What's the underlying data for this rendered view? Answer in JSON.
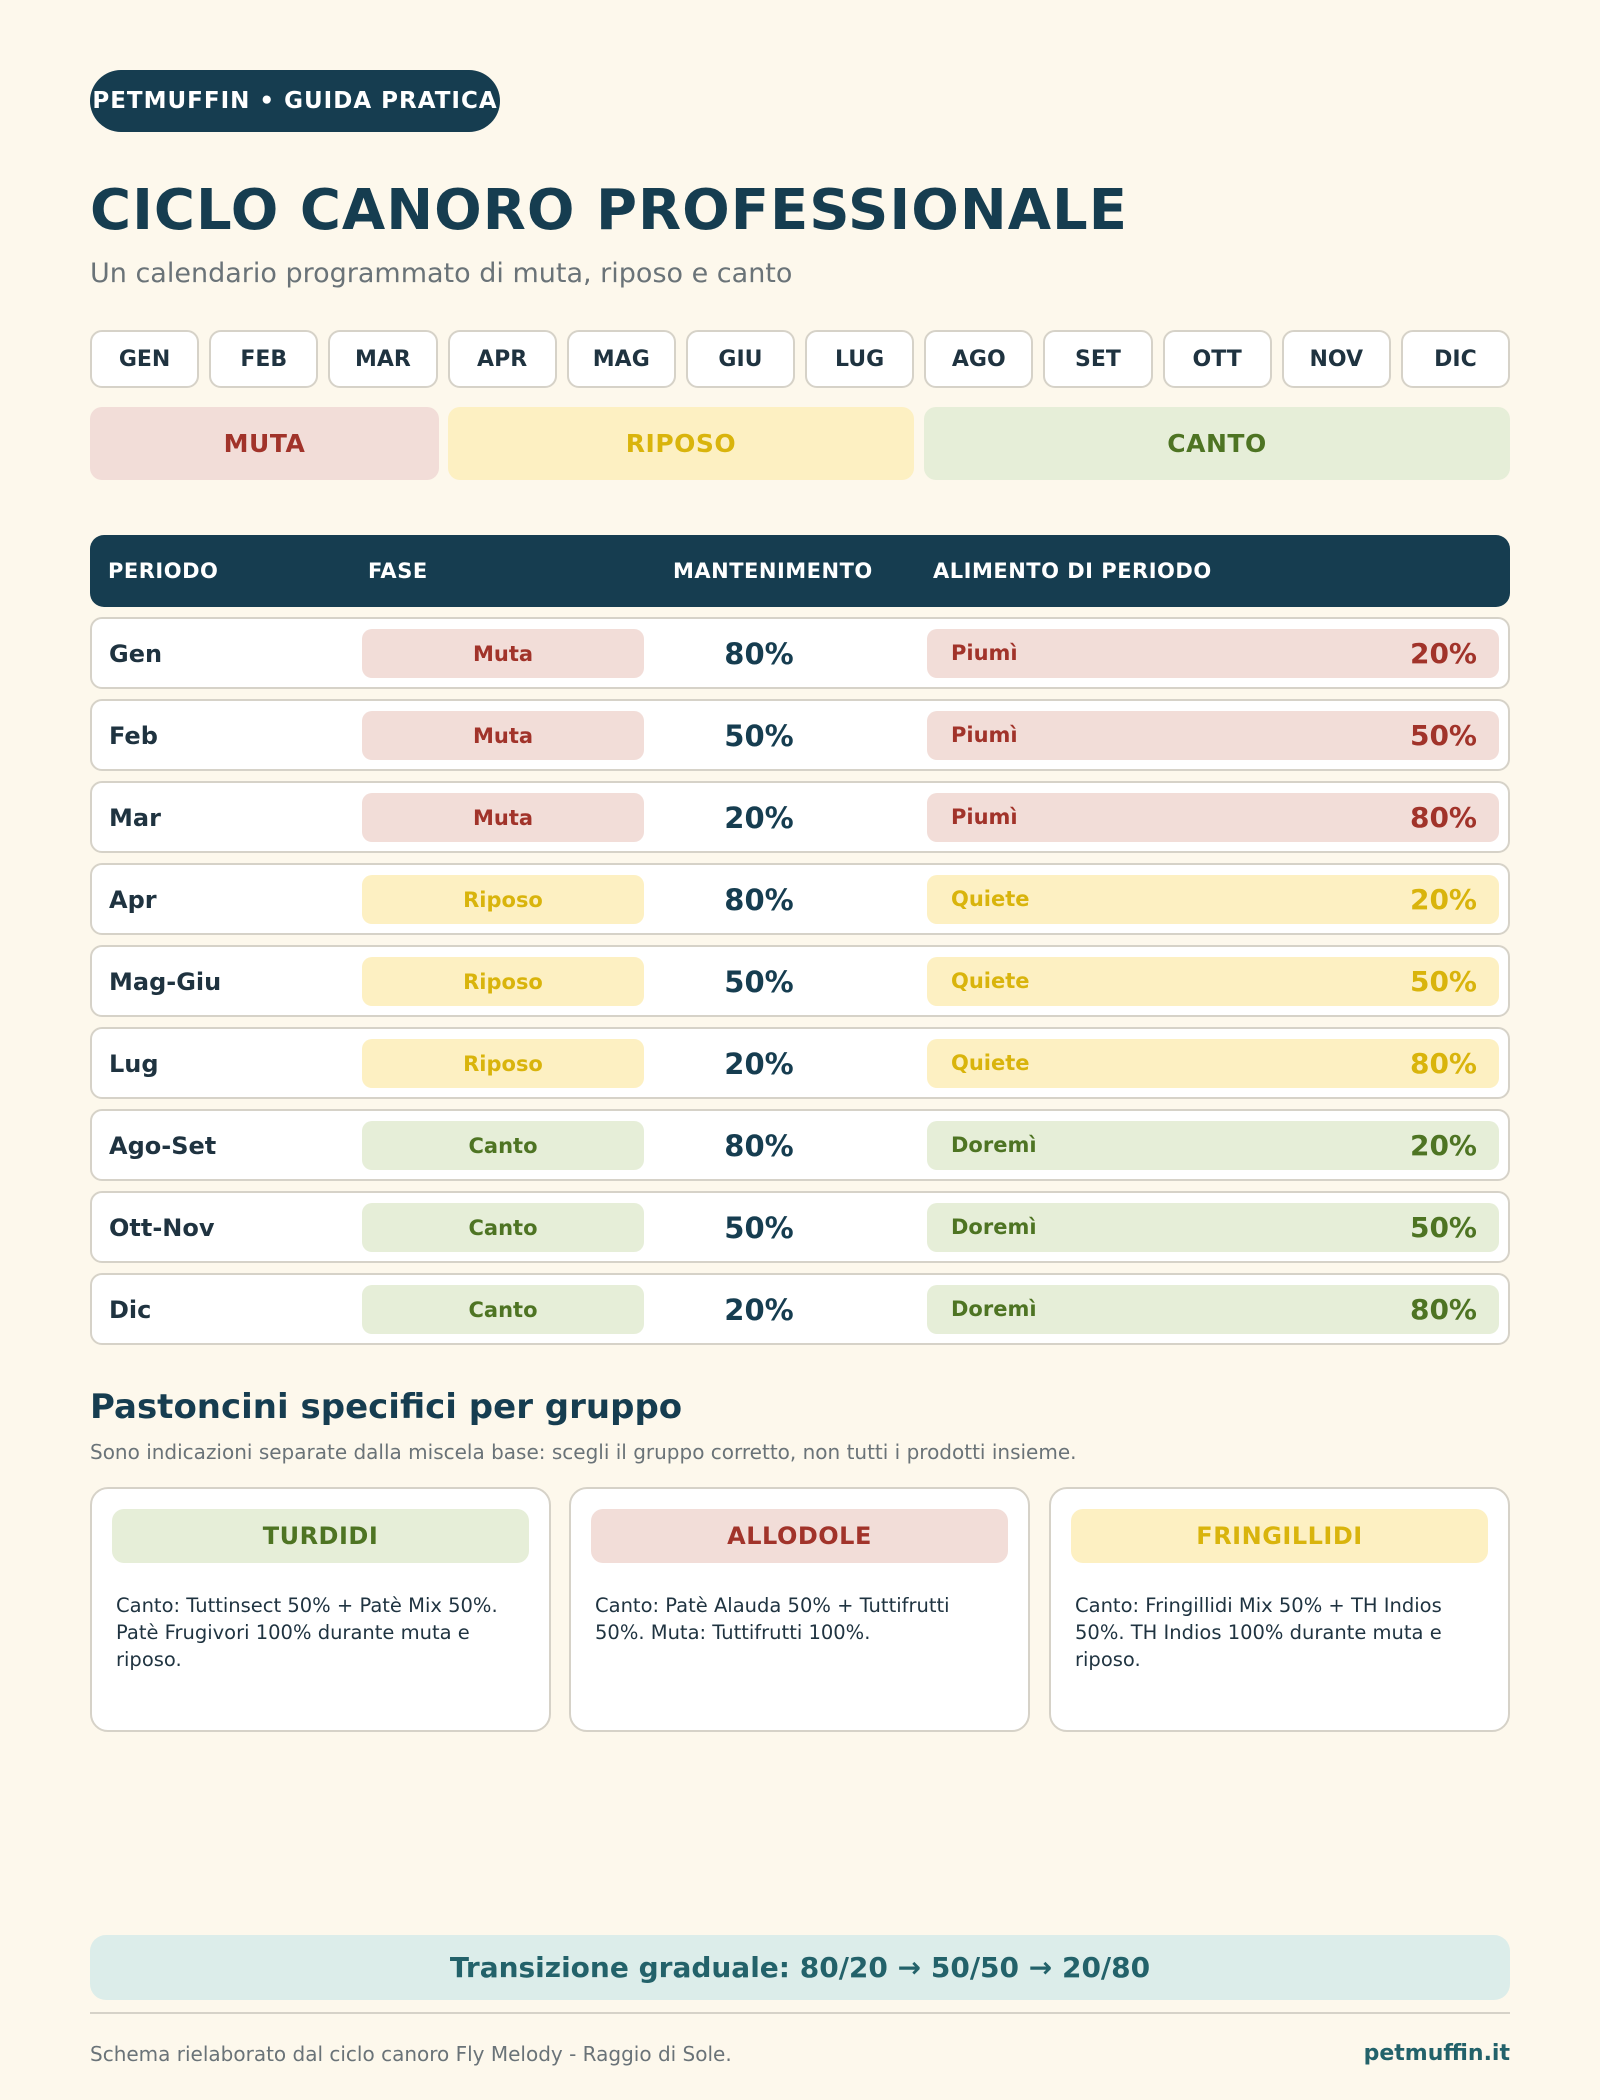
{
  "brand_pill": "PETMUFFIN  •  GUIDA PRATICA",
  "title": "CICLO CANORO PROFESSIONALE",
  "subtitle": "Un calendario programmato di muta, riposo e canto",
  "months": [
    "GEN",
    "FEB",
    "MAR",
    "APR",
    "MAG",
    "GIU",
    "LUG",
    "AGO",
    "SET",
    "OTT",
    "NOV",
    "DIC"
  ],
  "phases": {
    "muta": "MUTA",
    "riposo": "RIPOSO",
    "canto": "CANTO"
  },
  "colors": {
    "navy": "#163d50",
    "muta_bg": "#f2ddd8",
    "muta_text": "#a1332a",
    "riposo_bg": "#fdf0c2",
    "riposo_text": "#d9b40c",
    "canto_bg": "#e6eed8",
    "canto_text": "#4e7423",
    "background": "#fdf8ec"
  },
  "table": {
    "headers": {
      "periodo": "PERIODO",
      "fase": "FASE",
      "mantenimento": "MANTENIMENTO",
      "alimento": "ALIMENTO DI PERIODO"
    },
    "rows": [
      {
        "periodo": "Gen",
        "fase": "Muta",
        "mantenimento": "80%",
        "alimento": "Piumì",
        "alimento_pct": "20%",
        "kind": "muta"
      },
      {
        "periodo": "Feb",
        "fase": "Muta",
        "mantenimento": "50%",
        "alimento": "Piumì",
        "alimento_pct": "50%",
        "kind": "muta"
      },
      {
        "periodo": "Mar",
        "fase": "Muta",
        "mantenimento": "20%",
        "alimento": "Piumì",
        "alimento_pct": "80%",
        "kind": "muta"
      },
      {
        "periodo": "Apr",
        "fase": "Riposo",
        "mantenimento": "80%",
        "alimento": "Quiete",
        "alimento_pct": "20%",
        "kind": "riposo"
      },
      {
        "periodo": "Mag-Giu",
        "fase": "Riposo",
        "mantenimento": "50%",
        "alimento": "Quiete",
        "alimento_pct": "50%",
        "kind": "riposo"
      },
      {
        "periodo": "Lug",
        "fase": "Riposo",
        "mantenimento": "20%",
        "alimento": "Quiete",
        "alimento_pct": "80%",
        "kind": "riposo"
      },
      {
        "periodo": "Ago-Set",
        "fase": "Canto",
        "mantenimento": "80%",
        "alimento": "Doremì",
        "alimento_pct": "20%",
        "kind": "canto"
      },
      {
        "periodo": "Ott-Nov",
        "fase": "Canto",
        "mantenimento": "50%",
        "alimento": "Doremì",
        "alimento_pct": "50%",
        "kind": "canto"
      },
      {
        "periodo": "Dic",
        "fase": "Canto",
        "mantenimento": "20%",
        "alimento": "Doremì",
        "alimento_pct": "80%",
        "kind": "canto"
      }
    ]
  },
  "section": {
    "title": "Pastoncini specifici per gruppo",
    "subtitle": "Sono indicazioni separate dalla miscela base: scegli il gruppo corretto, non tutti i prodotti insieme."
  },
  "cards": [
    {
      "title": "TURDIDI",
      "text": "Canto: Tuttinsect 50% + Patè Mix 50%. Patè Frugivori 100% durante muta e riposo.",
      "kind": "canto"
    },
    {
      "title": "ALLODOLE",
      "text": "Canto: Patè Alauda 50% + Tuttifrutti 50%. Muta: Tuttifrutti 100%.",
      "kind": "muta"
    },
    {
      "title": "FRINGILLIDI",
      "text": "Canto: Fringillidi Mix 50% + TH Indios 50%. TH Indios 100% durante muta e riposo.",
      "kind": "riposo"
    }
  ],
  "banner": "Transizione graduale: 80/20 → 50/50 → 20/80",
  "footer": {
    "source": "Schema rielaborato dal ciclo canoro Fly Melody - Raggio di Sole.",
    "site": "petmuffin.it"
  }
}
